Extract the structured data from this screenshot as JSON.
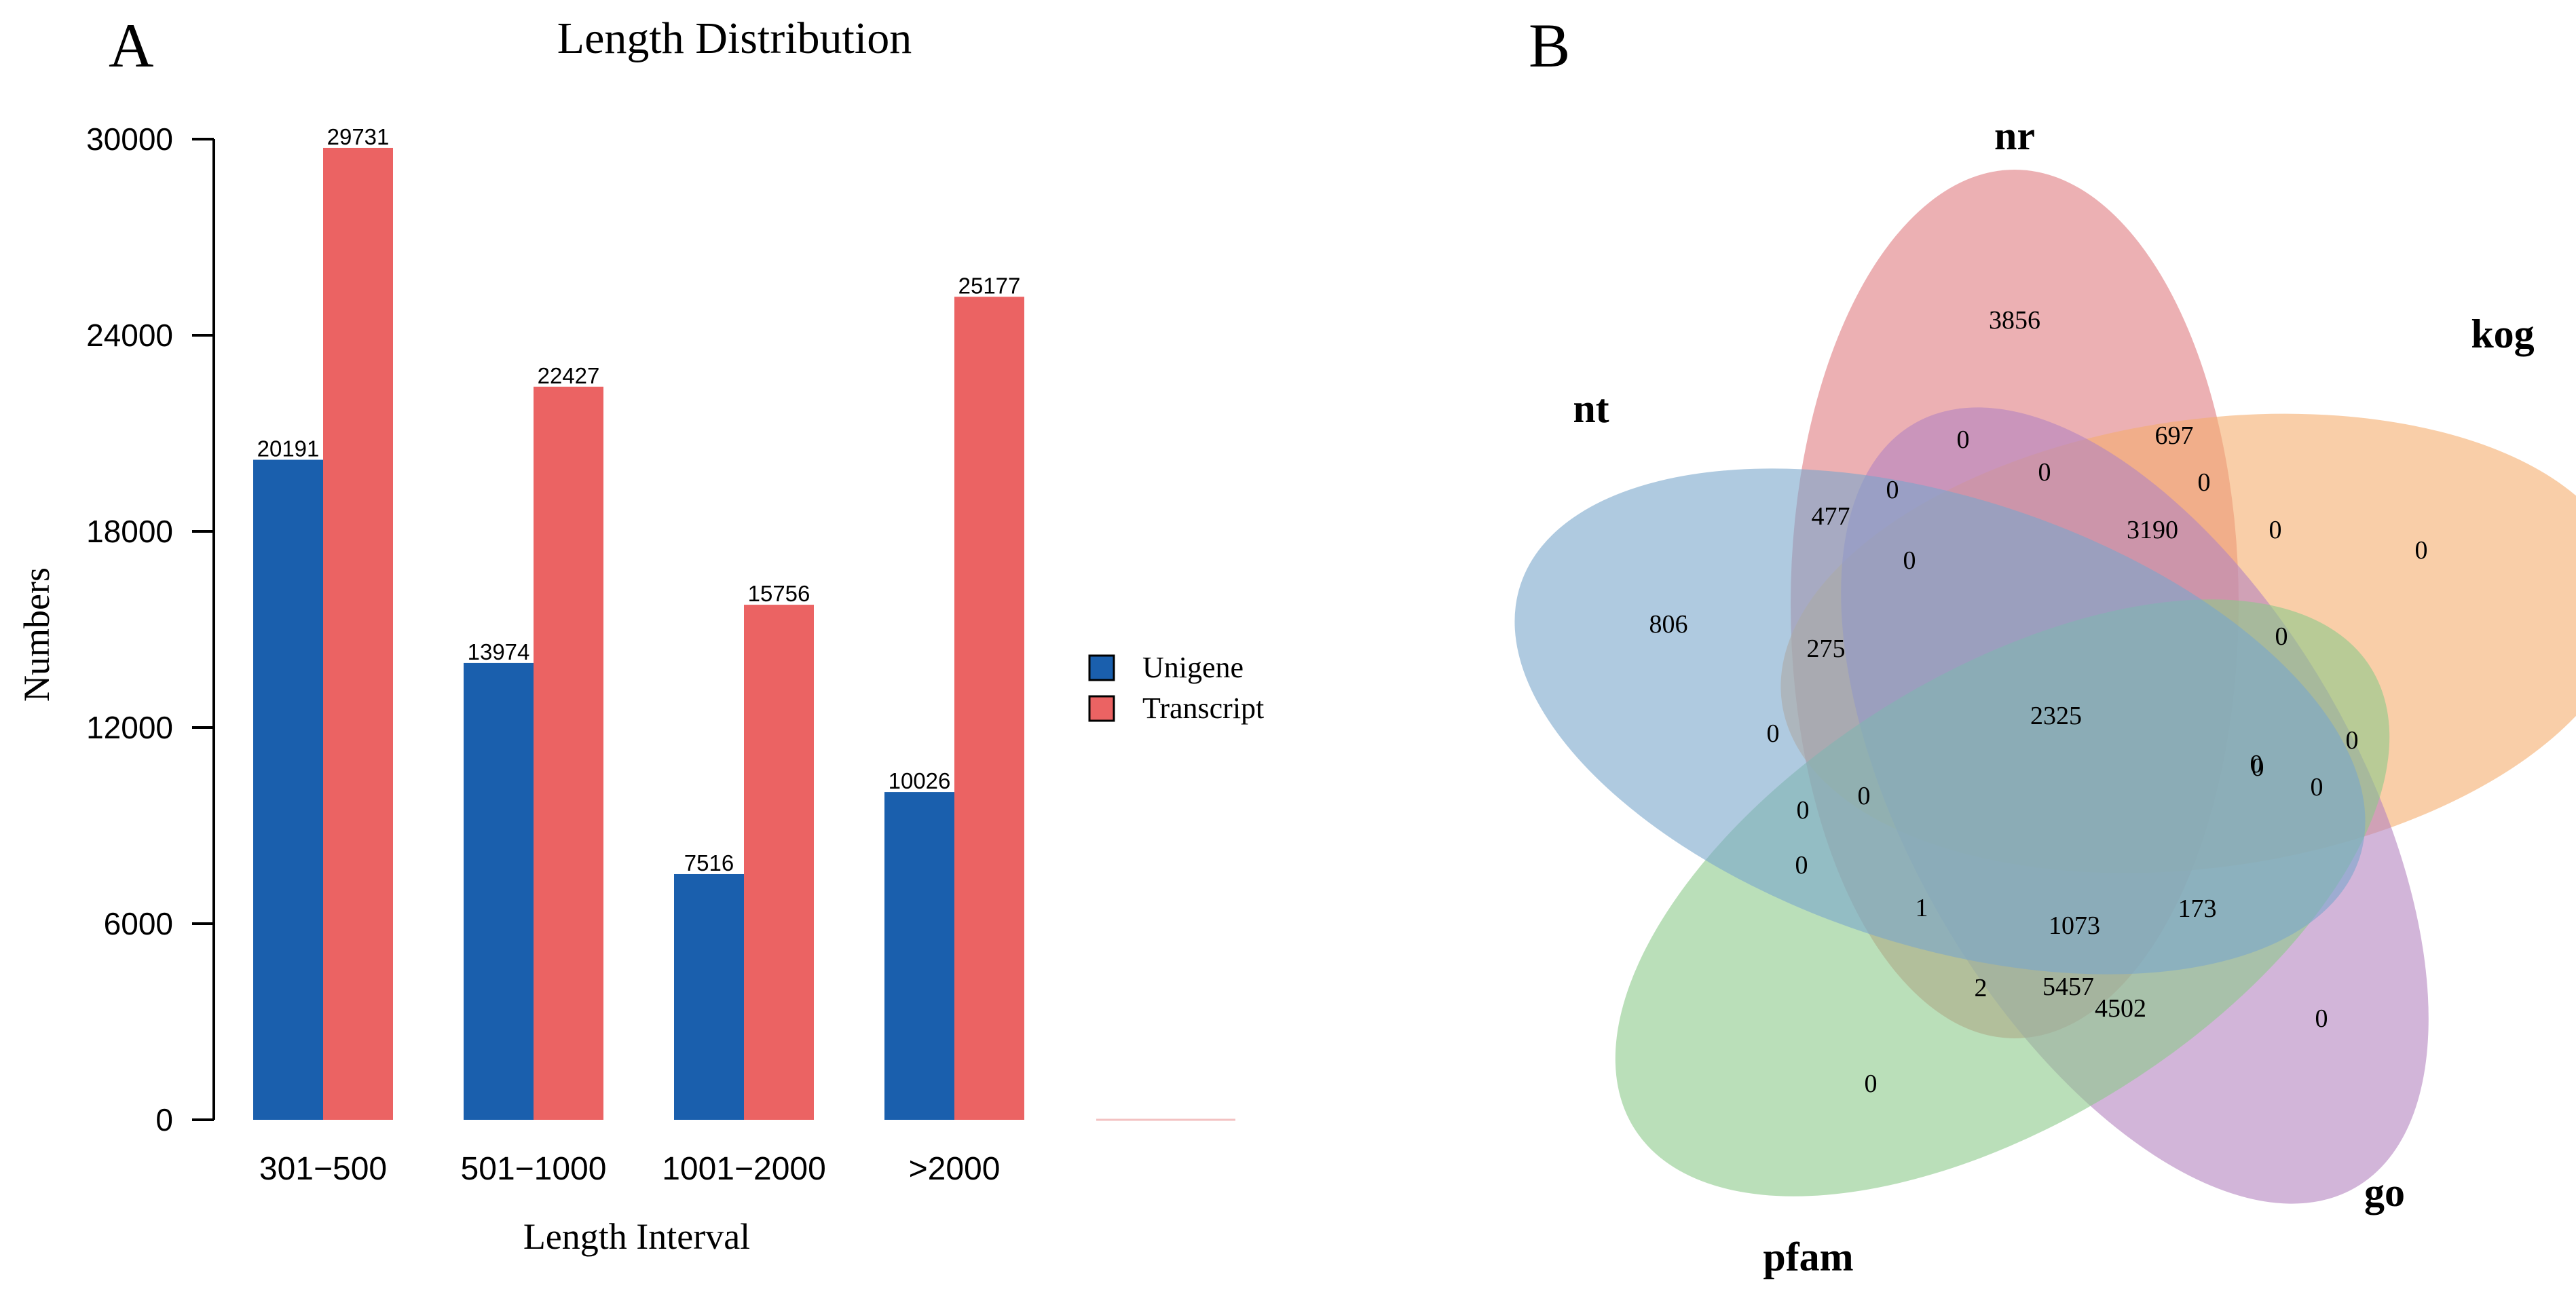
{
  "panels": {
    "a": "A",
    "b": "B"
  },
  "chart_data": [
    {
      "type": "bar",
      "title": "Length Distribution",
      "xlabel": "Length Interval",
      "ylabel": "Numbers",
      "categories": [
        "301-500",
        "501-1000",
        "1001-2000",
        ">2000"
      ],
      "category_labels": [
        "301−500",
        "501−1000",
        "1001−2000",
        ">2000"
      ],
      "series": [
        {
          "name": "Unigene",
          "color": "#1a5fad",
          "values": [
            20191,
            13974,
            7516,
            10026
          ]
        },
        {
          "name": "Transcript",
          "color": "#eb6363",
          "values": [
            29731,
            22427,
            15756,
            25177
          ]
        }
      ],
      "ylim": [
        0,
        30000
      ],
      "yticks": [
        0,
        6000,
        12000,
        18000,
        24000,
        30000
      ],
      "legend_position": "right",
      "grid": false
    },
    {
      "type": "venn",
      "sets": [
        {
          "name": "nr",
          "color": "#e07b80"
        },
        {
          "name": "kog",
          "color": "#f5ad6e"
        },
        {
          "name": "go",
          "color": "#b484bf"
        },
        {
          "name": "pfam",
          "color": "#8cca8a"
        },
        {
          "name": "nt",
          "color": "#7aa6cc"
        }
      ],
      "regions": [
        {
          "sets": [
            "nr"
          ],
          "count": "3856"
        },
        {
          "sets": [
            "kog"
          ],
          "count": "0"
        },
        {
          "sets": [
            "go"
          ],
          "count": "0"
        },
        {
          "sets": [
            "pfam"
          ],
          "count": "0"
        },
        {
          "sets": [
            "nt"
          ],
          "count": "806"
        },
        {
          "sets": [
            "nr",
            "kog"
          ],
          "count": "697"
        },
        {
          "sets": [
            "kog",
            "go"
          ],
          "count": "0"
        },
        {
          "sets": [
            "go",
            "pfam"
          ],
          "count": "4502"
        },
        {
          "sets": [
            "pfam",
            "nt"
          ],
          "count": "0"
        },
        {
          "sets": [
            "nt",
            "nr"
          ],
          "count": "477"
        },
        {
          "sets": [
            "nr",
            "go"
          ],
          "count": "0"
        },
        {
          "sets": [
            "kog",
            "pfam"
          ],
          "count": "0"
        },
        {
          "sets": [
            "go",
            "nt"
          ],
          "count": "173"
        },
        {
          "sets": [
            "pfam",
            "nr"
          ],
          "count": "2"
        },
        {
          "sets": [
            "nt",
            "kog"
          ],
          "count": "0"
        },
        {
          "sets": [
            "nr",
            "kog",
            "go"
          ],
          "count": "0"
        },
        {
          "sets": [
            "nr",
            "kog",
            "pfam"
          ],
          "count": "0"
        },
        {
          "sets": [
            "nt",
            "nr",
            "kog"
          ],
          "count": "0"
        },
        {
          "sets": [
            "nt",
            "nr",
            "go"
          ],
          "count": "0"
        },
        {
          "sets": [
            "nt",
            "nr",
            "pfam"
          ],
          "count": "1"
        },
        {
          "sets": [
            "kog",
            "go",
            "pfam"
          ],
          "count": "0"
        },
        {
          "sets": [
            "kog",
            "go",
            "nt"
          ],
          "count": "0"
        },
        {
          "sets": [
            "go",
            "pfam",
            "nt"
          ],
          "count": "0"
        },
        {
          "sets": [
            "go",
            "pfam",
            "nr"
          ],
          "count": "5457"
        },
        {
          "sets": [
            "pfam",
            "nt",
            "kog"
          ],
          "count": "0"
        },
        {
          "sets": [
            "nr",
            "kog",
            "go",
            "pfam"
          ],
          "count": "3190"
        },
        {
          "sets": [
            "nt",
            "nr",
            "kog",
            "go"
          ],
          "count": "0"
        },
        {
          "sets": [
            "nt",
            "nr",
            "go",
            "pfam"
          ],
          "count": "1073"
        },
        {
          "sets": [
            "nt",
            "nr",
            "kog",
            "pfam"
          ],
          "count": "275"
        },
        {
          "sets": [
            "nt",
            "kog",
            "go",
            "pfam"
          ],
          "count": "0"
        },
        {
          "sets": [
            "nt",
            "nr",
            "kog",
            "go",
            "pfam"
          ],
          "count": "2325"
        }
      ]
    }
  ]
}
